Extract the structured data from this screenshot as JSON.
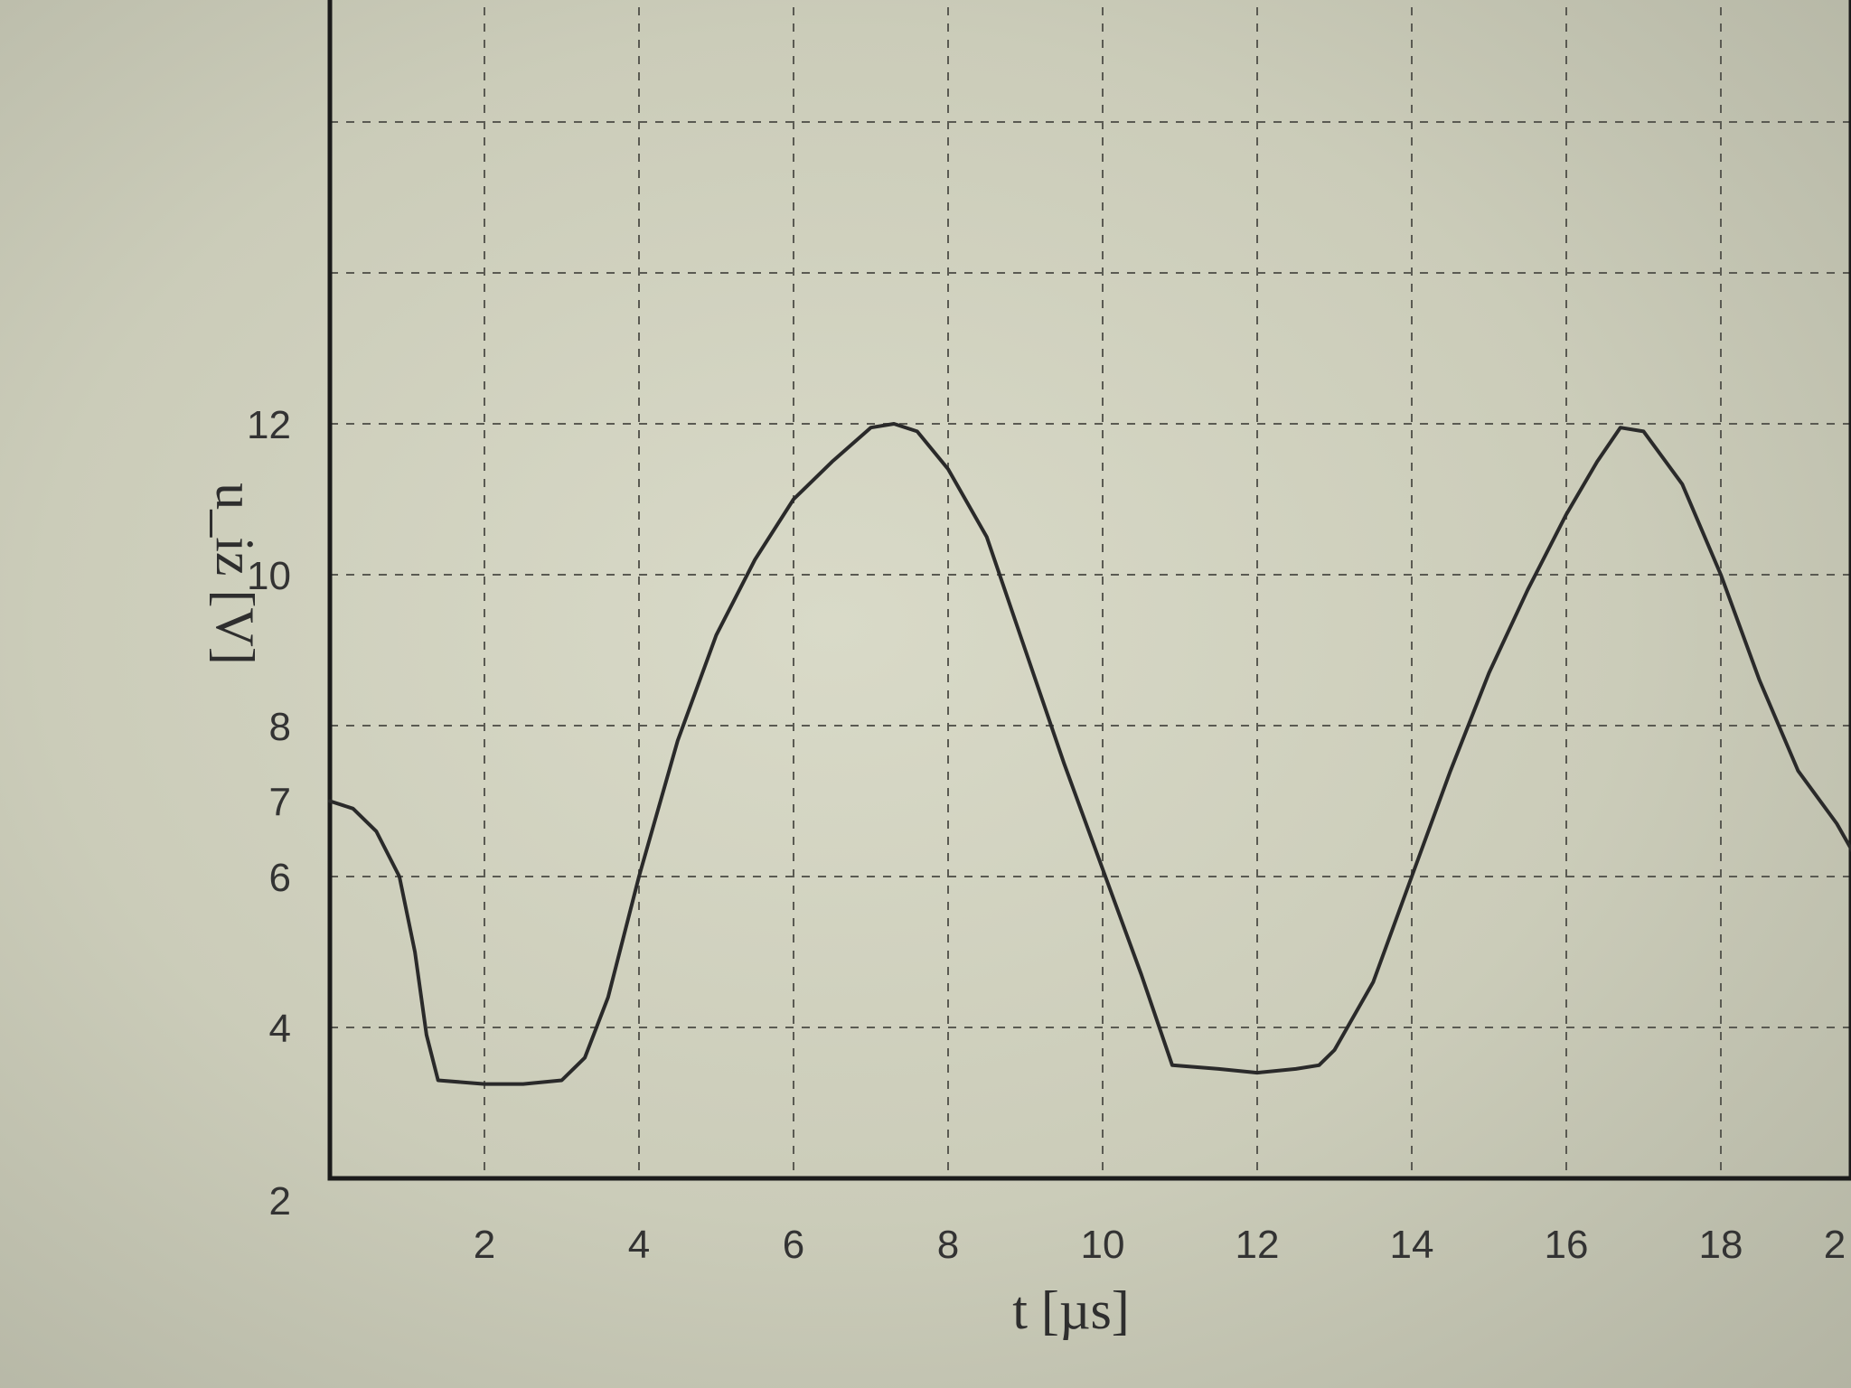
{
  "chart_data": {
    "type": "line",
    "title": "",
    "xlabel": "t [µs]",
    "ylabel": "u_iz [V]",
    "x_ticks": [
      "2",
      "4",
      "6",
      "8",
      "10",
      "12",
      "14",
      "16",
      "18",
      "2"
    ],
    "y_ticks": [
      "2",
      "4",
      "6",
      "7",
      "8",
      "10",
      "12"
    ],
    "xlim": [
      0,
      20
    ],
    "ylim": [
      2,
      17.7
    ],
    "grid": true,
    "legend": "none",
    "colors": {
      "trace": "#2a2a2a",
      "grid": "#5a5a52",
      "frame": "#1b1b1b"
    },
    "series": [
      {
        "x": [
          0,
          0.3,
          0.6,
          0.9,
          1.1,
          1.25,
          1.4,
          2.0,
          2.5,
          3.0,
          3.3,
          3.6,
          4.0,
          4.5,
          5.0,
          5.5,
          6.0,
          6.5,
          7.0,
          7.3,
          7.6,
          8.0,
          8.5,
          9.0,
          9.5,
          10.0,
          10.5,
          10.9,
          11.5,
          12.0,
          12.5,
          12.8,
          13.0,
          13.5,
          14.0,
          14.5,
          15.0,
          15.5,
          16.0,
          16.4,
          16.7,
          17.0,
          17.5,
          18.0,
          18.5,
          19.0,
          19.5,
          20.0
        ],
        "y": [
          7.0,
          6.9,
          6.6,
          6.0,
          5.0,
          3.9,
          3.3,
          3.25,
          3.25,
          3.3,
          3.6,
          4.4,
          6.0,
          7.8,
          9.2,
          10.2,
          11.0,
          11.5,
          11.95,
          12.0,
          11.9,
          11.4,
          10.5,
          9.0,
          7.5,
          6.1,
          4.7,
          3.5,
          3.45,
          3.4,
          3.45,
          3.5,
          3.7,
          4.6,
          6.0,
          7.4,
          8.7,
          9.8,
          10.8,
          11.5,
          11.95,
          11.9,
          11.2,
          10.0,
          8.6,
          7.4,
          6.7,
          5.8
        ]
      }
    ]
  }
}
